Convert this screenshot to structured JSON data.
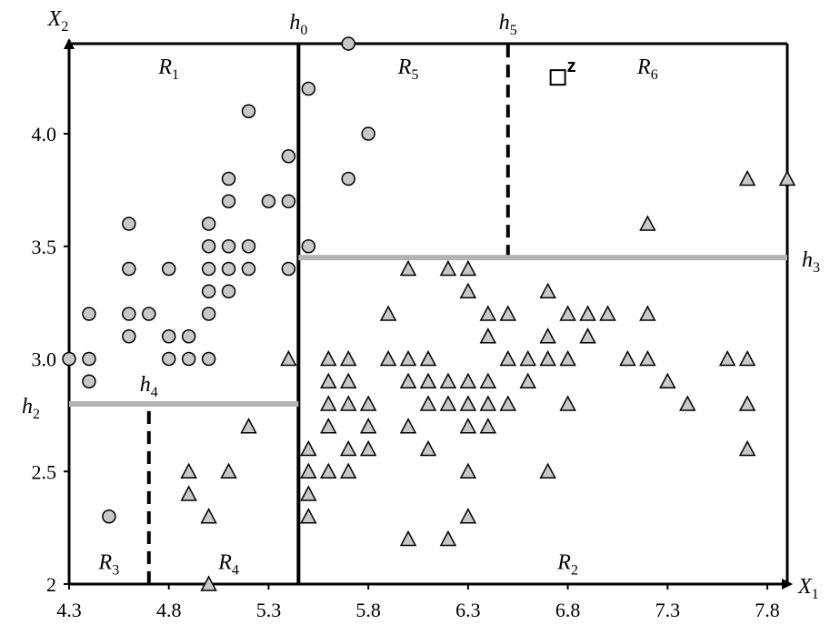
{
  "chart_data": {
    "type": "scatter",
    "title": "",
    "xlabel": "X1",
    "ylabel": "X2",
    "xlim": [
      4.3,
      7.9
    ],
    "ylim": [
      2.0,
      4.4
    ],
    "xticks": [
      4.3,
      4.8,
      5.3,
      5.8,
      6.3,
      6.8,
      7.3,
      7.8
    ],
    "xtick_labels": [
      "4.3",
      "4.8",
      "5.3",
      "5.8",
      "6.3",
      "6.8",
      "7.3",
      "7.8"
    ],
    "yticks": [
      2.0,
      2.5,
      3.0,
      3.5,
      4.0
    ],
    "ytick_labels": [
      "2",
      "2.5",
      "3.0",
      "3.5",
      "4.0"
    ],
    "axis_labels": {
      "x": {
        "main": "X",
        "sub": "1"
      },
      "y": {
        "main": "X",
        "sub": "2"
      }
    },
    "series": [
      {
        "marker": "circle",
        "fill": "#c8c8c8",
        "points": [
          [
            4.3,
            3.0
          ],
          [
            4.4,
            3.2
          ],
          [
            4.4,
            3.0
          ],
          [
            4.4,
            2.9
          ],
          [
            4.5,
            2.3
          ],
          [
            4.6,
            3.6
          ],
          [
            4.6,
            3.4
          ],
          [
            4.6,
            3.2
          ],
          [
            4.6,
            3.1
          ],
          [
            4.7,
            3.2
          ],
          [
            4.8,
            3.4
          ],
          [
            4.8,
            3.1
          ],
          [
            4.8,
            3.0
          ],
          [
            4.9,
            3.1
          ],
          [
            4.9,
            3.0
          ],
          [
            5.0,
            3.6
          ],
          [
            5.0,
            3.5
          ],
          [
            5.0,
            3.4
          ],
          [
            5.0,
            3.3
          ],
          [
            5.0,
            3.2
          ],
          [
            5.0,
            3.0
          ],
          [
            5.1,
            3.8
          ],
          [
            5.1,
            3.7
          ],
          [
            5.1,
            3.5
          ],
          [
            5.1,
            3.4
          ],
          [
            5.1,
            3.3
          ],
          [
            5.2,
            4.1
          ],
          [
            5.2,
            3.5
          ],
          [
            5.2,
            3.4
          ],
          [
            5.3,
            3.7
          ],
          [
            5.4,
            3.9
          ],
          [
            5.4,
            3.7
          ],
          [
            5.4,
            3.4
          ],
          [
            5.5,
            4.2
          ],
          [
            5.5,
            3.5
          ],
          [
            5.7,
            4.4
          ],
          [
            5.7,
            3.8
          ],
          [
            5.8,
            4.0
          ]
        ]
      },
      {
        "marker": "triangle",
        "fill": "#c8c8c8",
        "points": [
          [
            4.9,
            2.5
          ],
          [
            4.9,
            2.4
          ],
          [
            5.0,
            2.3
          ],
          [
            5.0,
            2.0
          ],
          [
            5.1,
            2.5
          ],
          [
            5.2,
            2.7
          ],
          [
            5.4,
            3.0
          ],
          [
            5.5,
            2.6
          ],
          [
            5.5,
            2.5
          ],
          [
            5.5,
            2.4
          ],
          [
            5.5,
            2.3
          ],
          [
            5.6,
            3.0
          ],
          [
            5.6,
            2.9
          ],
          [
            5.6,
            2.8
          ],
          [
            5.6,
            2.7
          ],
          [
            5.6,
            2.5
          ],
          [
            5.7,
            3.0
          ],
          [
            5.7,
            2.9
          ],
          [
            5.7,
            2.8
          ],
          [
            5.7,
            2.6
          ],
          [
            5.7,
            2.5
          ],
          [
            5.8,
            2.8
          ],
          [
            5.8,
            2.7
          ],
          [
            5.8,
            2.6
          ],
          [
            5.9,
            3.2
          ],
          [
            5.9,
            3.0
          ],
          [
            6.0,
            3.4
          ],
          [
            6.0,
            3.0
          ],
          [
            6.0,
            2.9
          ],
          [
            6.0,
            2.7
          ],
          [
            6.0,
            2.2
          ],
          [
            6.1,
            3.0
          ],
          [
            6.1,
            2.9
          ],
          [
            6.1,
            2.8
          ],
          [
            6.1,
            2.6
          ],
          [
            6.2,
            3.4
          ],
          [
            6.2,
            2.9
          ],
          [
            6.2,
            2.8
          ],
          [
            6.2,
            2.2
          ],
          [
            6.3,
            3.4
          ],
          [
            6.3,
            3.3
          ],
          [
            6.3,
            2.9
          ],
          [
            6.3,
            2.8
          ],
          [
            6.3,
            2.7
          ],
          [
            6.3,
            2.5
          ],
          [
            6.3,
            2.3
          ],
          [
            6.4,
            3.2
          ],
          [
            6.4,
            3.1
          ],
          [
            6.4,
            2.9
          ],
          [
            6.4,
            2.8
          ],
          [
            6.4,
            2.7
          ],
          [
            6.5,
            3.2
          ],
          [
            6.5,
            3.0
          ],
          [
            6.5,
            2.8
          ],
          [
            6.6,
            3.0
          ],
          [
            6.6,
            2.9
          ],
          [
            6.7,
            3.3
          ],
          [
            6.7,
            3.1
          ],
          [
            6.7,
            3.0
          ],
          [
            6.7,
            2.5
          ],
          [
            6.8,
            3.2
          ],
          [
            6.8,
            3.0
          ],
          [
            6.8,
            2.8
          ],
          [
            6.9,
            3.2
          ],
          [
            6.9,
            3.1
          ],
          [
            7.0,
            3.2
          ],
          [
            7.1,
            3.0
          ],
          [
            7.2,
            3.6
          ],
          [
            7.2,
            3.2
          ],
          [
            7.2,
            3.0
          ],
          [
            7.3,
            2.9
          ],
          [
            7.4,
            2.8
          ],
          [
            7.6,
            3.0
          ],
          [
            7.7,
            3.8
          ],
          [
            7.7,
            3.0
          ],
          [
            7.7,
            2.8
          ],
          [
            7.7,
            2.6
          ],
          [
            7.9,
            3.8
          ]
        ]
      },
      {
        "marker": "square",
        "fill": "#ffffff",
        "label": "z",
        "points": [
          [
            6.75,
            4.25
          ]
        ]
      }
    ],
    "split_lines": [
      {
        "label": "h",
        "sub": "0",
        "orientation": "vertical",
        "at": 5.45,
        "from": 2.0,
        "to": 4.4,
        "style": "solid",
        "color": "#000000",
        "label_side": "top"
      },
      {
        "label": "h",
        "sub": "5",
        "orientation": "vertical",
        "at": 6.5,
        "from": 3.45,
        "to": 4.4,
        "style": "dashed",
        "color": "#000000",
        "label_side": "top"
      },
      {
        "label": "h",
        "sub": "3",
        "orientation": "horizontal",
        "at": 3.45,
        "from": 5.45,
        "to": 7.9,
        "style": "solid",
        "color": "#b4b4b4",
        "label_side": "right"
      },
      {
        "label": "h",
        "sub": "2",
        "orientation": "horizontal",
        "at": 2.8,
        "from": 4.3,
        "to": 5.45,
        "style": "solid",
        "color": "#b4b4b4",
        "label_side": "left"
      },
      {
        "label": "h",
        "sub": "4",
        "orientation": "vertical",
        "at": 4.7,
        "from": 2.0,
        "to": 2.8,
        "style": "dashed",
        "color": "#000000",
        "label_side": "top"
      }
    ],
    "regions": [
      {
        "label": "R",
        "sub": "1",
        "x": 4.8,
        "y": 4.3
      },
      {
        "label": "R",
        "sub": "5",
        "x": 6.0,
        "y": 4.3
      },
      {
        "label": "R",
        "sub": "6",
        "x": 7.2,
        "y": 4.3
      },
      {
        "label": "R",
        "sub": "3",
        "x": 4.5,
        "y": 2.1
      },
      {
        "label": "R",
        "sub": "4",
        "x": 5.1,
        "y": 2.1
      },
      {
        "label": "R",
        "sub": "2",
        "x": 6.8,
        "y": 2.1
      }
    ],
    "grid": false,
    "legend": "none"
  }
}
